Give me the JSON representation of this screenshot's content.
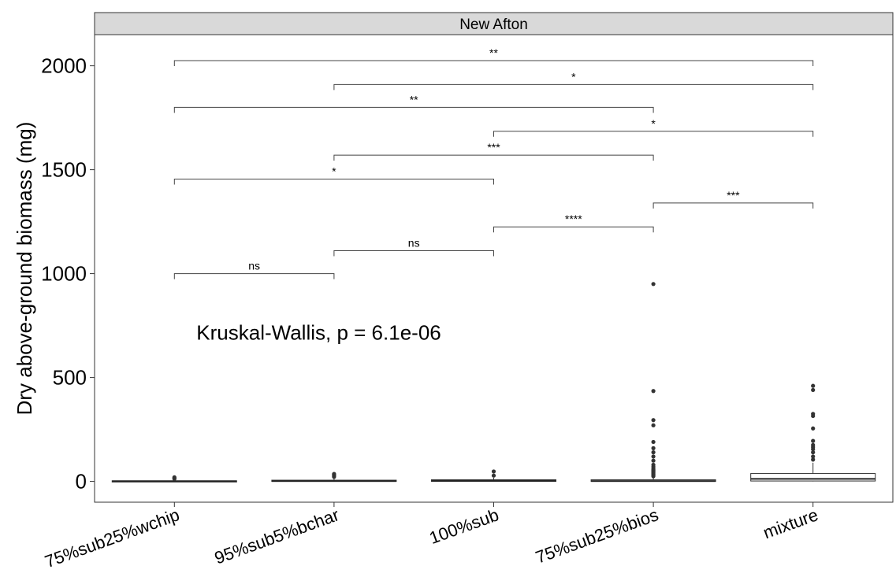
{
  "chart_data": {
    "type": "box",
    "facet": "New Afton",
    "title": "",
    "xlabel": "",
    "ylabel": "Dry above-ground biomass (mg)",
    "ylim": [
      -100,
      2150
    ],
    "yticks": [
      0,
      500,
      1000,
      1500,
      2000
    ],
    "categories": [
      "75%sub25%wchip",
      "95%sub5%bchar",
      "100%sub",
      "75%sub25%bios",
      "mixture"
    ],
    "boxes": [
      {
        "category": "75%sub25%wchip",
        "q1": 0,
        "median": 1,
        "q3": 3,
        "whisker_low": 0,
        "whisker_high": 5,
        "outliers": [
          12,
          16,
          20
        ]
      },
      {
        "category": "95%sub5%bchar",
        "q1": 0,
        "median": 2,
        "q3": 6,
        "whisker_low": 0,
        "whisker_high": 14,
        "outliers": [
          22,
          27,
          32,
          36
        ]
      },
      {
        "category": "100%sub",
        "q1": 0,
        "median": 3,
        "q3": 8,
        "whisker_low": 0,
        "whisker_high": 18,
        "outliers": [
          28,
          48
        ]
      },
      {
        "category": "75%sub25%bios",
        "q1": 0,
        "median": 2,
        "q3": 8,
        "whisker_low": 0,
        "whisker_high": 20,
        "outliers": [
          25,
          30,
          35,
          40,
          45,
          50,
          55,
          60,
          70,
          80,
          100,
          120,
          140,
          160,
          190,
          270,
          295,
          435,
          950
        ]
      },
      {
        "category": "mixture",
        "q1": 2,
        "median": 12,
        "q3": 38,
        "whisker_low": 0,
        "whisker_high": 90,
        "outliers": [
          105,
          120,
          140,
          155,
          165,
          175,
          195,
          255,
          315,
          325,
          440,
          460
        ]
      }
    ],
    "comparisons": [
      {
        "from": "75%sub25%wchip",
        "to": "95%sub5%bchar",
        "y": 1000,
        "label": "ns"
      },
      {
        "from": "95%sub5%bchar",
        "to": "100%sub",
        "y": 1110,
        "label": "ns"
      },
      {
        "from": "100%sub",
        "to": "75%sub25%bios",
        "y": 1225,
        "label": "****"
      },
      {
        "from": "75%sub25%bios",
        "to": "mixture",
        "y": 1340,
        "label": "***"
      },
      {
        "from": "75%sub25%wchip",
        "to": "100%sub",
        "y": 1455,
        "label": "*"
      },
      {
        "from": "95%sub5%bchar",
        "to": "75%sub25%bios",
        "y": 1570,
        "label": "***"
      },
      {
        "from": "100%sub",
        "to": "mixture",
        "y": 1685,
        "label": "*"
      },
      {
        "from": "75%sub25%wchip",
        "to": "75%sub25%bios",
        "y": 1800,
        "label": "**"
      },
      {
        "from": "95%sub5%bchar",
        "to": "mixture",
        "y": 1910,
        "label": "*"
      },
      {
        "from": "75%sub25%wchip",
        "to": "mixture",
        "y": 2025,
        "label": "**"
      }
    ],
    "test_annotation": "Kruskal-Wallis, p = 6.1e-06",
    "test_annotation_pos": {
      "x_category": "75%sub25%wchip",
      "y": 720
    },
    "grid": false,
    "legend": "none"
  }
}
